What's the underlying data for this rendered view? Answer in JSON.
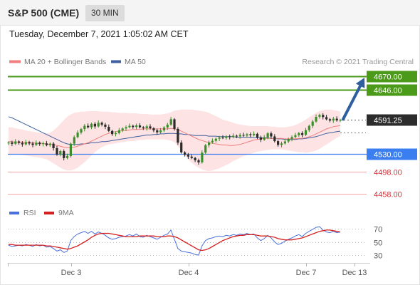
{
  "header": {
    "instrument": "S&P 500 (CME)",
    "timeframe": "30 MIN",
    "datetime": "Tuesday, December 7, 2021 1:05:02 AM CET"
  },
  "legend": {
    "ma20_label": "MA 20 + Bollinger Bands",
    "ma50_label": "MA 50",
    "credit": "Research © 2021 Trading Central",
    "rsi_label": "RSI",
    "rsi_ma_label": "9MA"
  },
  "colors": {
    "resistance": "#4c9a1a",
    "support": "#3a7ef0",
    "target_red": "#d9303a",
    "price_box": "#2c2c2c",
    "ma20": "#f08080",
    "ma50": "#3f5f9f",
    "bollinger_fill": "#fde3e3",
    "candle_up": "#3b8f2a",
    "candle_down": "#2a2a2a",
    "arrow": "#2f5f9e",
    "rsi": "#4a70d9",
    "rsi_ma": "#d42020"
  },
  "chart_data": [
    {
      "type": "candlestick",
      "title": "S&P 500 (CME) 30 MIN",
      "x_ticks": [
        "Dec 3",
        "Dec 4",
        "Dec 7",
        "Dec 13"
      ],
      "ylim": [
        4440,
        4690
      ],
      "current_price": "4591.25",
      "series": [
        {
          "name": "price",
          "close": [
            4550.5,
            4548.1,
            4552.4,
            4549.8,
            4547.2,
            4551.3,
            4548.7,
            4546.1,
            4550.2,
            4547.6,
            4549,
            4545.8,
            4548.4,
            4540.2,
            4528.6,
            4535.1,
            4522.4,
            4526.3,
            4548.5,
            4560.2,
            4568.4,
            4574.8,
            4580.6,
            4577.9,
            4584.2,
            4579.5,
            4586.1,
            4582.7,
            4578.8,
            4571.3,
            4565.7,
            4567.4,
            4572.6,
            4575.8,
            4578.1,
            4580.6,
            4578.4,
            4581.3,
            4577.9,
            4576.2,
            4579.5,
            4576.1,
            4572.4,
            4568.9,
            4572.3,
            4577.6,
            4582.8,
            4592.4,
            4575.1,
            4550.3,
            4532.7,
            4528.4,
            4525.1,
            4522.6,
            4518.4,
            4514.7,
            4532.3,
            4545.6,
            4550.8,
            4553.6,
            4557.3,
            4559.4,
            4558.8,
            4561.6,
            4560.2,
            4562.7,
            4561.5,
            4564.1,
            4562.9,
            4565.4,
            4563.8,
            4566.2,
            4559.7,
            4555.5,
            4559.8,
            4567.1,
            4561.4,
            4552.9,
            4546.1,
            4548.8,
            4552.4,
            4556.9,
            4560.3,
            4563.7,
            4567.5,
            4564.2,
            4572.7,
            4580.5,
            4588.3,
            4596.8,
            4600.2,
            4596.3,
            4592.5,
            4590.1,
            4593.4,
            4590.3,
            4591.25
          ]
        },
        {
          "name": "MA 20",
          "values": [
            4552,
            4552,
            4551,
            4551,
            4551,
            4550,
            4550,
            4550,
            4549,
            4549,
            4549,
            4548,
            4547,
            4547,
            4545,
            4544,
            4542,
            4541,
            4541,
            4542,
            4544,
            4546,
            4548,
            4550,
            4553,
            4556,
            4559,
            4562,
            4565,
            4567,
            4569,
            4570,
            4571,
            4572,
            4572,
            4573,
            4574,
            4574,
            4574,
            4575,
            4575,
            4575,
            4575,
            4575,
            4575,
            4575,
            4575,
            4576,
            4575,
            4574,
            4571,
            4568,
            4565,
            4562,
            4559,
            4556,
            4554,
            4552,
            4550,
            4549,
            4548,
            4547,
            4546,
            4546,
            4545,
            4545,
            4546,
            4547,
            4549,
            4551,
            4553,
            4555,
            4556,
            4557,
            4558,
            4558,
            4558,
            4558,
            4558,
            4558,
            4557,
            4557,
            4557,
            4557,
            4558,
            4558,
            4559,
            4561,
            4563,
            4566,
            4569,
            4572,
            4575,
            4577,
            4579,
            4580,
            4581
          ]
        },
        {
          "name": "MA 50",
          "values": [
            4597,
            4595,
            4592,
            4589,
            4586,
            4583,
            4580,
            4577,
            4574,
            4571,
            4568,
            4565,
            4562,
            4559,
            4556,
            4553,
            4550,
            4548,
            4547,
            4547,
            4547,
            4548,
            4548,
            4549,
            4550,
            4550,
            4551,
            4552,
            4552,
            4553,
            4554,
            4555,
            4556,
            4557,
            4558,
            4559,
            4560,
            4561,
            4562,
            4563,
            4564,
            4564,
            4565,
            4565,
            4566,
            4566,
            4567,
            4567,
            4567,
            4566,
            4566,
            4565,
            4565,
            4564,
            4563,
            4563,
            4563,
            4563,
            4562,
            4562,
            4562,
            4561,
            4561,
            4561,
            4561,
            4561,
            4560,
            4560,
            4560,
            4560,
            4560,
            4559,
            4559,
            4559,
            4559,
            4559,
            4558,
            4558,
            4557,
            4557,
            4556,
            4556,
            4556,
            4556,
            4557,
            4557,
            4558,
            4559,
            4560,
            4561,
            4563,
            4565,
            4567,
            4568,
            4569,
            4570,
            4571
          ]
        },
        {
          "name": "Bollinger Upper",
          "values": [
            4578,
            4578,
            4576,
            4575,
            4574,
            4572,
            4571,
            4570,
            4569,
            4568,
            4567,
            4567,
            4568,
            4572,
            4578,
            4584,
            4591,
            4597,
            4601,
            4604,
            4605,
            4606,
            4606,
            4607,
            4607,
            4607,
            4607,
            4606,
            4606,
            4606,
            4605,
            4605,
            4604,
            4604,
            4604,
            4603,
            4603,
            4603,
            4602,
            4602,
            4602,
            4601,
            4601,
            4601,
            4601,
            4602,
            4603,
            4605,
            4608,
            4609,
            4610,
            4610,
            4610,
            4610,
            4609,
            4608,
            4607,
            4606,
            4604,
            4601,
            4598,
            4595,
            4592,
            4590,
            4588,
            4586,
            4584,
            4583,
            4582,
            4581,
            4580,
            4580,
            4580,
            4580,
            4580,
            4580,
            4579,
            4579,
            4578,
            4578,
            4578,
            4579,
            4580,
            4582,
            4585,
            4588,
            4592,
            4596,
            4600,
            4604,
            4607,
            4609,
            4610,
            4610,
            4609,
            4608,
            4606
          ]
        },
        {
          "name": "Bollinger Lower",
          "values": [
            4530,
            4530,
            4529,
            4529,
            4528,
            4527,
            4526,
            4525,
            4524,
            4523,
            4522,
            4520,
            4517,
            4513,
            4509,
            4505,
            4502,
            4500,
            4500,
            4502,
            4505,
            4510,
            4515,
            4521,
            4527,
            4533,
            4538,
            4542,
            4545,
            4547,
            4548,
            4549,
            4550,
            4551,
            4552,
            4553,
            4553,
            4554,
            4555,
            4555,
            4556,
            4556,
            4556,
            4556,
            4556,
            4556,
            4555,
            4554,
            4551,
            4544,
            4536,
            4528,
            4520,
            4514,
            4509,
            4505,
            4502,
            4500,
            4499,
            4500,
            4502,
            4504,
            4507,
            4510,
            4513,
            4517,
            4520,
            4523,
            4526,
            4528,
            4530,
            4532,
            4534,
            4535,
            4536,
            4537,
            4538,
            4538,
            4538,
            4538,
            4537,
            4536,
            4535,
            4534,
            4533,
            4533,
            4532,
            4533,
            4534,
            4536,
            4539,
            4543,
            4547,
            4551,
            4555,
            4559,
            4562
          ]
        }
      ],
      "levels": [
        {
          "label": "4670.00",
          "value": 4670,
          "style": "green"
        },
        {
          "label": "4646.00",
          "value": 4646,
          "style": "green"
        },
        {
          "label": "4591.25",
          "value": 4591.25,
          "style": "price"
        },
        {
          "label": "4530.00",
          "value": 4530,
          "style": "blue"
        },
        {
          "label": "4498.00",
          "value": 4498,
          "style": "red"
        },
        {
          "label": "4458.00",
          "value": 4458,
          "style": "red"
        }
      ],
      "forecast_arrow": {
        "from": 4591.25,
        "to": 4670
      }
    },
    {
      "type": "line",
      "title": "RSI",
      "ylim": [
        20,
        80
      ],
      "y_ticks": [
        "70",
        "50",
        "30"
      ],
      "series": [
        {
          "name": "RSI",
          "values": [
            45,
            43,
            44,
            45,
            44,
            46,
            45,
            43,
            46,
            44,
            45,
            42,
            43,
            40,
            36,
            38,
            34,
            36,
            52,
            58,
            62,
            64,
            66,
            63,
            66,
            62,
            65,
            63,
            60,
            56,
            54,
            55,
            57,
            58,
            59,
            61,
            59,
            62,
            58,
            57,
            60,
            58,
            56,
            54,
            57,
            60,
            62,
            68,
            54,
            40,
            36,
            35,
            34,
            33,
            31,
            30,
            44,
            52,
            55,
            56,
            58,
            59,
            58,
            60,
            59,
            61,
            60,
            62,
            61,
            63,
            61,
            62,
            56,
            52,
            55,
            60,
            56,
            50,
            46,
            48,
            51,
            54,
            56,
            59,
            61,
            58,
            63,
            66,
            69,
            72,
            73,
            68,
            65,
            64,
            66,
            64,
            65
          ]
        },
        {
          "name": "9MA",
          "values": [
            46,
            46,
            45,
            45,
            45,
            45,
            45,
            45,
            45,
            45,
            45,
            44,
            44,
            43,
            42,
            41,
            40,
            39,
            40,
            42,
            44,
            47,
            50,
            53,
            57,
            60,
            62,
            63,
            63,
            63,
            62,
            61,
            60,
            59,
            58,
            58,
            58,
            58,
            59,
            59,
            59,
            59,
            59,
            58,
            58,
            58,
            59,
            59,
            58,
            56,
            53,
            50,
            47,
            44,
            41,
            38,
            37,
            38,
            40,
            43,
            46,
            49,
            52,
            54,
            56,
            58,
            59,
            60,
            60,
            61,
            61,
            61,
            60,
            59,
            59,
            59,
            58,
            57,
            55,
            54,
            53,
            53,
            53,
            54,
            55,
            56,
            58,
            60,
            62,
            64,
            66,
            67,
            68,
            68,
            67,
            66,
            65
          ]
        }
      ]
    }
  ]
}
